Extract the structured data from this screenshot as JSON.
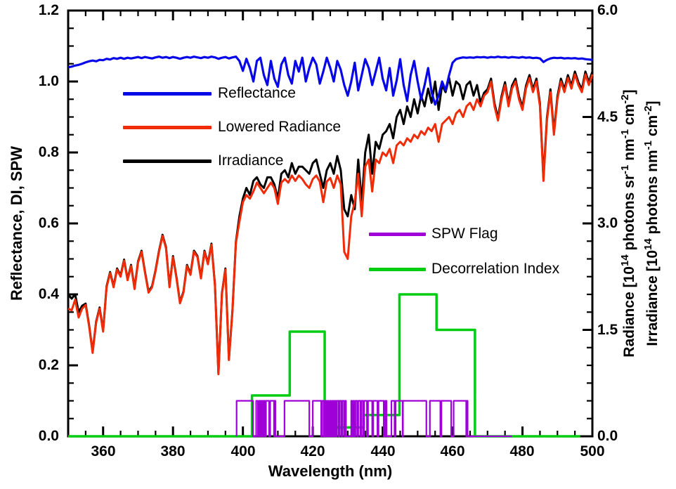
{
  "figure": {
    "left_axis": {
      "title": "Reflectance, DI, SPW",
      "ticks": [
        "1.2",
        "1.0",
        "0.8",
        "0.6",
        "0.4",
        "0.2",
        "0.0"
      ]
    },
    "bottom_axis": {
      "title": "Wavelength (nm)",
      "ticks": [
        "360",
        "380",
        "400",
        "420",
        "440",
        "460",
        "480",
        "500"
      ]
    },
    "right_axis": {
      "ticks": [
        "6.0",
        "4.5",
        "3.0",
        "1.5",
        "0.0"
      ],
      "radiance_title_parts": [
        [
          "Radiance [10",
          0
        ],
        [
          "14",
          1
        ],
        [
          " photons sr",
          0
        ],
        [
          "-1",
          1
        ],
        [
          " nm",
          0
        ],
        [
          "-1",
          1
        ],
        [
          " cm",
          0
        ],
        [
          "-2",
          1
        ],
        [
          "]",
          0
        ]
      ],
      "irradiance_title_parts": [
        [
          "Irradiance [10",
          0
        ],
        [
          "14",
          1
        ],
        [
          " photons nm",
          0
        ],
        [
          "-1",
          1
        ],
        [
          " cm",
          0
        ],
        [
          "-2",
          1
        ],
        [
          "]",
          0
        ]
      ]
    },
    "legend_main": {
      "items": [
        {
          "label": "Reflectance",
          "color": "#0606e8"
        },
        {
          "label": "Lowered Radiance",
          "color": "#f02c08"
        },
        {
          "label": "Irradiance",
          "color": "#000000"
        }
      ]
    },
    "legend_flags": {
      "items": [
        {
          "label": "SPW Flag",
          "color": "#a000d8"
        },
        {
          "label": "Decorrelation Index",
          "color": "#00cd11"
        }
      ]
    }
  },
  "chart_data": {
    "type": "line",
    "xlabel": "Wavelength (nm)",
    "ylabel_left": "Reflectance, DI, SPW",
    "ylabel_right": "Radiance [10^14 photons sr^-1 nm^-1 cm^-2] / Irradiance [10^14 photons nm^-1 cm^-2]",
    "x_range": [
      350,
      500
    ],
    "left_ylim": [
      0,
      1.2
    ],
    "right_ylim": [
      0,
      6.0
    ],
    "right_scale_factor": 5,
    "x_major_tick_step": 20,
    "x_minor_tick_step": 5,
    "left_minor_tick_step": 0.05,
    "right_minor_tick_step": 0.25,
    "grid": false,
    "series": [
      {
        "name": "Decorrelation Index",
        "axis": "left",
        "color": "#00cd11",
        "line_width": 3.5,
        "steps": [
          [
            350.0,
            402.6,
            0.0
          ],
          [
            402.6,
            413.4,
            0.115
          ],
          [
            413.4,
            423.4,
            0.295
          ],
          [
            423.4,
            434.6,
            0.025
          ],
          [
            434.6,
            444.8,
            0.06
          ],
          [
            444.8,
            455.4,
            0.4
          ],
          [
            455.4,
            466.4,
            0.3
          ],
          [
            466.4,
            496.5,
            0.0
          ]
        ]
      },
      {
        "name": "SPW Flag",
        "axis": "left",
        "color": "#a000d8",
        "line_width": 2.2,
        "level": 0.1,
        "baseline_end": 477.0,
        "on_intervals": [
          [
            398.2,
            402.9
          ],
          [
            403.8,
            404.3
          ],
          [
            404.6,
            405.0
          ],
          [
            405.3,
            405.6
          ],
          [
            405.9,
            406.3
          ],
          [
            406.6,
            407.5
          ],
          [
            407.8,
            408.9
          ],
          [
            409.0,
            409.3
          ],
          [
            411.9,
            419.0
          ],
          [
            420.0,
            422.4
          ],
          [
            422.7,
            423.2
          ],
          [
            423.5,
            423.9
          ],
          [
            424.2,
            424.5
          ],
          [
            424.9,
            425.1
          ],
          [
            425.4,
            425.6
          ],
          [
            425.9,
            426.1
          ],
          [
            426.4,
            426.6
          ],
          [
            426.9,
            427.4
          ],
          [
            427.7,
            428.2
          ],
          [
            428.5,
            429.0
          ],
          [
            429.2,
            429.5
          ],
          [
            431.0,
            431.3
          ],
          [
            431.6,
            431.9
          ],
          [
            432.2,
            432.7
          ],
          [
            433.0,
            433.6
          ],
          [
            433.9,
            434.4
          ],
          [
            434.7,
            435.5
          ],
          [
            435.8,
            437.0
          ],
          [
            437.3,
            438.5
          ],
          [
            438.8,
            440.3
          ],
          [
            440.7,
            441.1
          ],
          [
            442.5,
            443.4
          ],
          [
            443.7,
            445.7
          ],
          [
            445.8,
            452.5
          ],
          [
            453.5,
            456.5
          ],
          [
            456.8,
            459.6
          ],
          [
            460.3,
            463.9
          ],
          [
            464.0,
            464.3
          ]
        ]
      },
      {
        "name": "Irradiance",
        "axis": "left",
        "color": "#000000",
        "line_width": 3,
        "x_start": 350,
        "x_step": 1,
        "values": [
          0.4,
          0.388,
          0.4,
          0.35,
          0.368,
          0.374,
          0.313,
          0.238,
          0.323,
          0.363,
          0.298,
          0.423,
          0.463,
          0.423,
          0.473,
          0.453,
          0.498,
          0.443,
          0.483,
          0.418,
          0.493,
          0.523,
          0.463,
          0.408,
          0.423,
          0.468,
          0.523,
          0.568,
          0.533,
          0.423,
          0.508,
          0.448,
          0.378,
          0.408,
          0.483,
          0.458,
          0.523,
          0.508,
          0.448,
          0.523,
          0.488,
          0.543,
          0.428,
          0.178,
          0.403,
          0.473,
          0.218,
          0.353,
          0.548,
          0.62,
          0.67,
          0.7,
          0.68,
          0.72,
          0.73,
          0.71,
          0.7,
          0.73,
          0.73,
          0.71,
          0.67,
          0.74,
          0.75,
          0.73,
          0.77,
          0.74,
          0.76,
          0.76,
          0.75,
          0.74,
          0.77,
          0.78,
          0.74,
          0.7,
          0.75,
          0.77,
          0.74,
          0.79,
          0.75,
          0.64,
          0.62,
          0.68,
          0.64,
          0.78,
          0.66,
          0.8,
          0.85,
          0.74,
          0.83,
          0.81,
          0.85,
          0.86,
          0.88,
          0.84,
          0.9,
          0.92,
          0.88,
          0.93,
          0.9,
          0.95,
          0.91,
          0.96,
          0.93,
          0.98,
          0.94,
          1.0,
          0.92,
          0.99,
          0.97,
          1.01,
          0.96,
          1.0,
          0.99,
          0.95,
          0.99,
          1.0,
          0.96,
          0.99,
          0.94,
          0.968,
          0.978,
          1.008,
          0.938,
          0.898,
          0.958,
          0.998,
          0.938,
          0.988,
          1.008,
          0.958,
          0.928,
          0.988,
          1.018,
          0.978,
          1.008,
          0.938,
          0.728,
          0.898,
          0.978,
          0.858,
          0.958,
          1.008,
          0.978,
          1.018,
          0.988,
          1.028,
          0.998,
          0.978,
          1.028,
          0.998,
          1.028
        ]
      },
      {
        "name": "Lowered Radiance",
        "axis": "left",
        "color": "#f02c08",
        "line_width": 3,
        "x_start": 350,
        "x_step": 1,
        "values": [
          0.36,
          0.355,
          0.385,
          0.335,
          0.36,
          0.37,
          0.31,
          0.235,
          0.32,
          0.36,
          0.295,
          0.42,
          0.46,
          0.42,
          0.47,
          0.45,
          0.495,
          0.44,
          0.48,
          0.415,
          0.49,
          0.52,
          0.46,
          0.405,
          0.42,
          0.465,
          0.52,
          0.565,
          0.53,
          0.42,
          0.505,
          0.445,
          0.375,
          0.405,
          0.48,
          0.455,
          0.52,
          0.505,
          0.445,
          0.52,
          0.485,
          0.54,
          0.425,
          0.175,
          0.4,
          0.47,
          0.215,
          0.35,
          0.545,
          0.605,
          0.66,
          0.68,
          0.67,
          0.69,
          0.715,
          0.7,
          0.685,
          0.7,
          0.715,
          0.7,
          0.655,
          0.715,
          0.725,
          0.715,
          0.735,
          0.72,
          0.735,
          0.725,
          0.71,
          0.7,
          0.725,
          0.735,
          0.718,
          0.66,
          0.718,
          0.728,
          0.7,
          0.735,
          0.71,
          0.52,
          0.5,
          0.62,
          0.66,
          0.74,
          0.62,
          0.76,
          0.78,
          0.69,
          0.78,
          0.77,
          0.8,
          0.79,
          0.81,
          0.77,
          0.82,
          0.83,
          0.82,
          0.84,
          0.83,
          0.85,
          0.84,
          0.86,
          0.85,
          0.87,
          0.86,
          0.88,
          0.83,
          0.88,
          0.89,
          0.9,
          0.88,
          0.91,
          0.92,
          0.9,
          0.93,
          0.94,
          0.92,
          0.95,
          0.93,
          0.96,
          0.97,
          1.0,
          0.93,
          0.89,
          0.95,
          0.99,
          0.93,
          0.98,
          1.0,
          0.95,
          0.92,
          0.98,
          1.01,
          0.97,
          1.0,
          0.93,
          0.72,
          0.89,
          0.97,
          0.85,
          0.95,
          1.0,
          0.97,
          1.01,
          0.98,
          1.02,
          0.99,
          0.97,
          1.02,
          0.99,
          1.02
        ]
      },
      {
        "name": "Reflectance",
        "axis": "left",
        "color": "#0606e8",
        "line_width": 3.2,
        "x_start": 350,
        "x_step": 1,
        "values": [
          1.04,
          1.042,
          1.045,
          1.047,
          1.05,
          1.054,
          1.057,
          1.059,
          1.057,
          1.061,
          1.06,
          1.064,
          1.062,
          1.066,
          1.064,
          1.067,
          1.064,
          1.067,
          1.065,
          1.067,
          1.069,
          1.066,
          1.069,
          1.067,
          1.065,
          1.068,
          1.07,
          1.067,
          1.069,
          1.066,
          1.069,
          1.067,
          1.064,
          1.067,
          1.069,
          1.067,
          1.07,
          1.068,
          1.066,
          1.069,
          1.067,
          1.07,
          1.068,
          1.064,
          1.067,
          1.069,
          1.065,
          1.068,
          1.07,
          1.058,
          1.03,
          1.064,
          1.038,
          1.0,
          1.058,
          1.067,
          1.018,
          0.99,
          1.058,
          1.008,
          0.985,
          1.048,
          1.067,
          1.018,
          0.994,
          1.058,
          1.028,
          1.067,
          1.0,
          1.038,
          1.067,
          1.048,
          0.994,
          1.028,
          1.067,
          1.038,
          1.0,
          1.058,
          1.033,
          0.99,
          0.96,
          1.0,
          1.053,
          0.975,
          1.018,
          1.063,
          1.038,
          0.99,
          1.028,
          1.067,
          1.008,
          0.975,
          1.038,
          0.96,
          1.003,
          1.063,
          0.99,
          0.945,
          1.018,
          1.058,
          1.0,
          0.95,
          0.99,
          1.038,
          0.97,
          0.935,
          0.96,
          1.0,
          0.975,
          1.018,
          1.053,
          1.063,
          1.066,
          1.068,
          1.067,
          1.068,
          1.067,
          1.069,
          1.068,
          1.069,
          1.067,
          1.069,
          1.068,
          1.07,
          1.068,
          1.069,
          1.067,
          1.069,
          1.068,
          1.067,
          1.069,
          1.067,
          1.068,
          1.066,
          1.067,
          1.065,
          1.055,
          1.061,
          1.065,
          1.067,
          1.066,
          1.067,
          1.065,
          1.066,
          1.065,
          1.066,
          1.064,
          1.065,
          1.063,
          1.062,
          1.061
        ]
      }
    ]
  }
}
